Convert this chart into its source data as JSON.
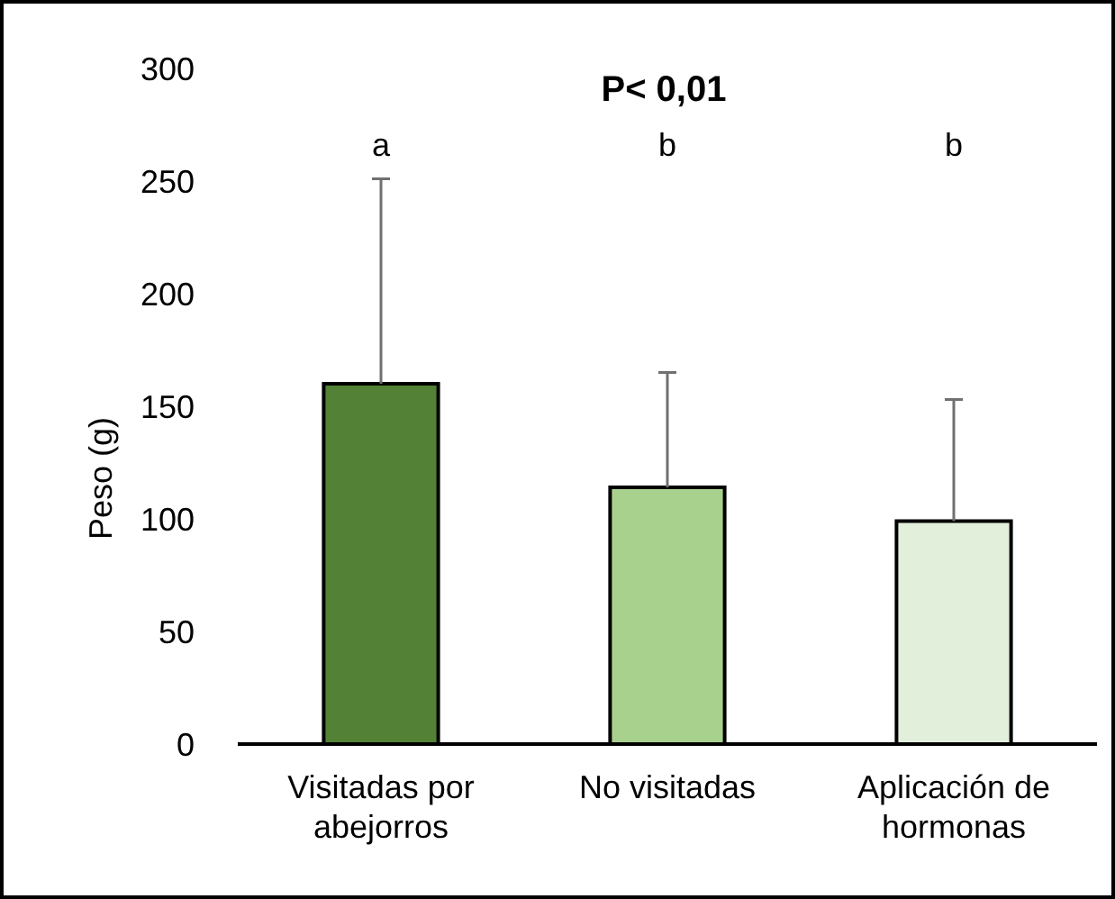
{
  "chart_data": {
    "type": "bar",
    "title": "P< 0,01",
    "ylabel": "Peso (g)",
    "categories": [
      "Visitadas por abejorros",
      "No visitadas",
      "Aplicación de hormonas"
    ],
    "values": [
      160,
      114,
      99
    ],
    "colors": [
      "#538135",
      "#a9d18e",
      "#e2efda"
    ],
    "errors": [
      [
        160,
        251
      ],
      [
        114,
        165
      ],
      [
        99,
        153
      ]
    ],
    "ylim": [
      0,
      300
    ],
    "yticks": [
      0,
      50,
      100,
      150,
      200,
      250,
      300
    ],
    "grid": false,
    "annotations": [
      "a",
      "b",
      "b"
    ]
  }
}
